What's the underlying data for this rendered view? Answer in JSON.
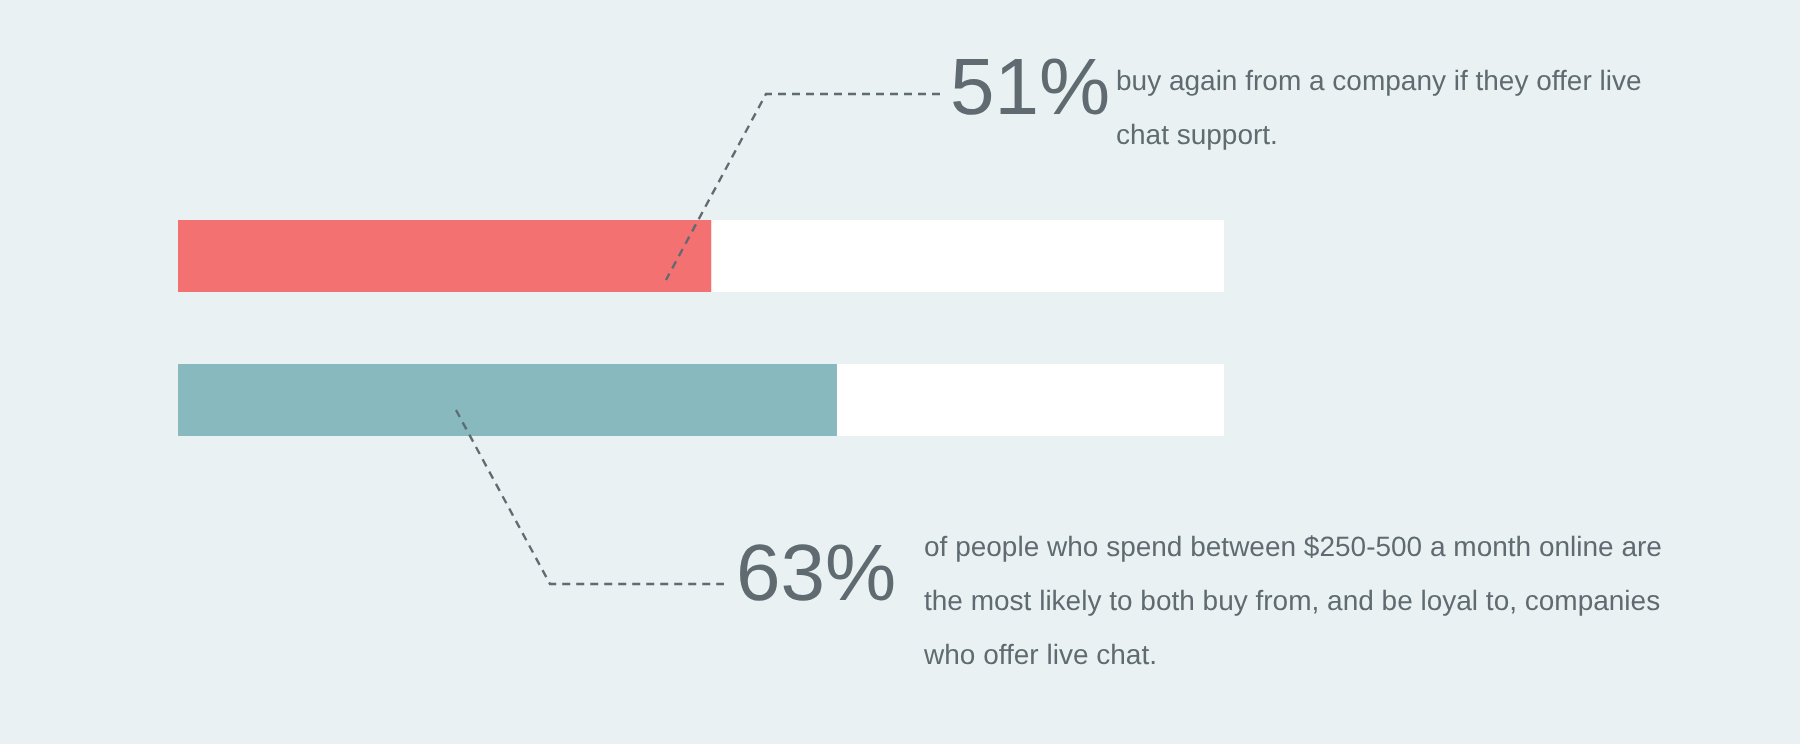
{
  "chart_data": {
    "type": "bar",
    "orientation": "horizontal",
    "stacked": true,
    "categories": [
      null,
      null
    ],
    "series": [
      {
        "colors": [
          "#f37171",
          "#88b9bf"
        ],
        "values": [
          51,
          63
        ],
        "value_labels": [
          "51%",
          "63%"
        ]
      },
      {
        "color": "#ffffff",
        "values": [
          49,
          37
        ]
      }
    ],
    "annotations": [
      "buy again from a company if they offer live chat support.",
      "of people who spend between $250-500 a month online are the most likely to both buy from, and be loyal to, companies who offer live chat."
    ]
  }
}
